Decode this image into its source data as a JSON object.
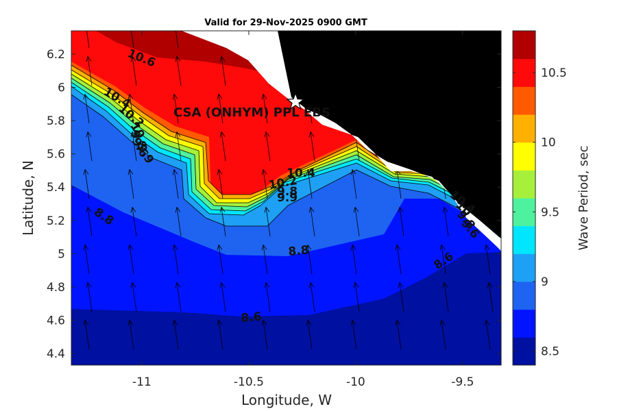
{
  "title": "Valid for 29-Nov-2025 0900 GMT",
  "x_axis": {
    "label": "Longitude, W",
    "ticks": [
      "-11",
      "-10.5",
      "-10",
      "-9.5"
    ]
  },
  "y_axis": {
    "label": "Latitude, N",
    "ticks": [
      "4.4",
      "4.6",
      "4.8",
      "5",
      "5.2",
      "5.4",
      "5.6",
      "5.8",
      "6",
      "6.2"
    ]
  },
  "colorbar": {
    "label": "Wave Period, sec",
    "ticks": [
      "8.5",
      "9",
      "9.5",
      "10",
      "10.5"
    ],
    "levels": [
      {
        "color": "#0010a0"
      },
      {
        "color": "#0014ff"
      },
      {
        "color": "#1e64f0"
      },
      {
        "color": "#1ea0f5"
      },
      {
        "color": "#00e6ff"
      },
      {
        "color": "#4ef29e"
      },
      {
        "color": "#a6f03c"
      },
      {
        "color": "#ffff00"
      },
      {
        "color": "#ffb000"
      },
      {
        "color": "#ff5a00"
      },
      {
        "color": "#ff0a0a"
      },
      {
        "color": "#b00000"
      }
    ]
  },
  "site_label": "CSA (ONHYM) PPL EBS",
  "contour_labels": [
    {
      "text": "10.6"
    },
    {
      "text": "10.4"
    },
    {
      "text": "10.2"
    },
    {
      "text": "10"
    },
    {
      "text": "9.8"
    },
    {
      "text": "9.6"
    },
    {
      "text": "9.9"
    },
    {
      "text": "10.4"
    },
    {
      "text": "10.2"
    },
    {
      "text": "9.8"
    },
    {
      "text": "9.9"
    },
    {
      "text": "10.4"
    },
    {
      "text": "10"
    },
    {
      "text": "9.8"
    },
    {
      "text": "9.6"
    },
    {
      "text": "8.8"
    },
    {
      "text": "8.8"
    },
    {
      "text": "8.6"
    },
    {
      "text": "8.6"
    }
  ],
  "colors": {
    "land": "#000000",
    "coast_gap": "#ffffff",
    "arrow": "#000000"
  },
  "chart_data": {
    "type": "map-contour",
    "title": "Valid for 29-Nov-2025 0900 GMT",
    "xlabel": "Longitude, W",
    "ylabel": "Latitude, N",
    "xlim": [
      -11.33,
      -9.32
    ],
    "ylim": [
      4.33,
      6.34
    ],
    "colorbar_range": [
      8.4,
      10.8
    ],
    "colorbar_label": "Wave Period, sec",
    "marker": {
      "label": "CSA (ONHYM) PPL EBS",
      "lon": -10.28,
      "lat": 5.92,
      "symbol": "star"
    },
    "wave_direction": "arrows pointing north-northwest"
  }
}
